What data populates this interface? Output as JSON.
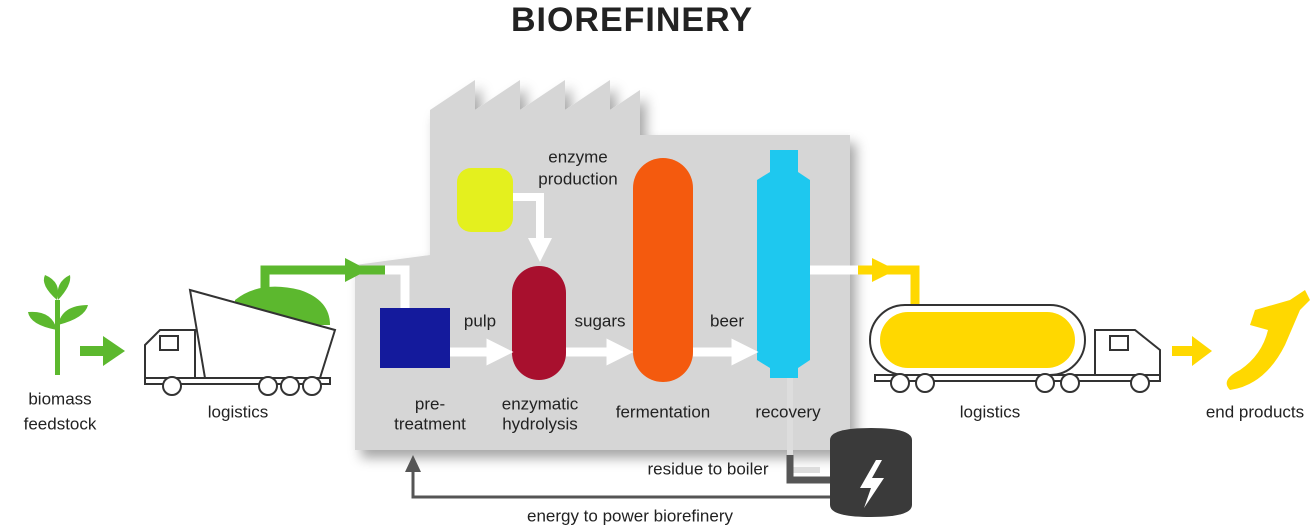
{
  "title": "BIOREFINERY",
  "labels": {
    "biomass_feedstock": [
      "biomass",
      "feedstock"
    ],
    "logistics_in": "logistics",
    "pretreatment": [
      "pre-",
      "treatment"
    ],
    "enzyme_production": [
      "enzyme",
      "production"
    ],
    "pulp": "pulp",
    "enzymatic_hydrolysis": [
      "enzymatic",
      "hydrolysis"
    ],
    "sugars": "sugars",
    "fermentation": "fermentation",
    "beer": "beer",
    "recovery": "recovery",
    "logistics_out": "logistics",
    "end_products": "end products",
    "residue_to_boiler": "residue to boiler",
    "energy_to_power": "energy to power biorefinery"
  }
}
